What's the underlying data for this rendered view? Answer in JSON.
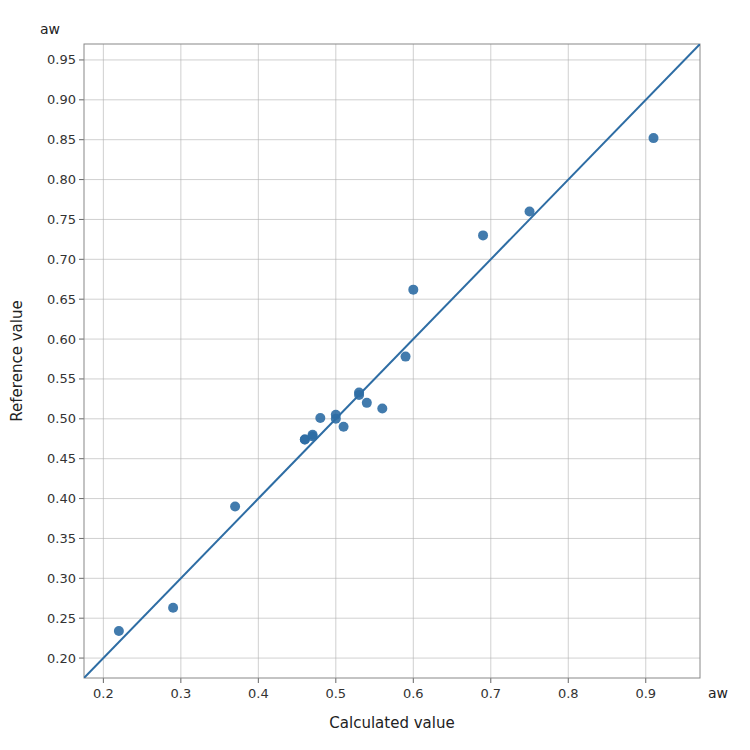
{
  "chart_data": {
    "type": "scatter",
    "xlabel": "Calculated value",
    "ylabel": "Reference value",
    "annotations": [
      "aw",
      "aw"
    ],
    "background_color": "#ffffff",
    "series": [
      {
        "type": "scatter",
        "color": "#2e6da4",
        "x": [
          0.22,
          0.29,
          0.37,
          0.46,
          0.46,
          0.47,
          0.47,
          0.48,
          0.5,
          0.5,
          0.51,
          0.53,
          0.53,
          0.54,
          0.56,
          0.59,
          0.6,
          0.69,
          0.75,
          0.91
        ],
        "values": [
          0.234,
          0.263,
          0.39,
          0.474,
          0.474,
          0.478,
          0.48,
          0.501,
          0.5,
          0.505,
          0.49,
          0.53,
          0.533,
          0.52,
          0.513,
          0.578,
          0.662,
          0.73,
          0.76,
          0.852
        ]
      },
      {
        "type": "line",
        "color": "#2e6da4",
        "x": [
          0.175,
          0.97
        ],
        "values": [
          0.175,
          0.97
        ]
      }
    ],
    "xlim": [
      0.175,
      0.97
    ],
    "ylim": [
      0.175,
      0.97
    ],
    "xticks": [
      0.2,
      0.3,
      0.4,
      0.5,
      0.6,
      0.7,
      0.8,
      0.9
    ],
    "yticks": [
      {
        "value": 0.2,
        "label": "0.20"
      },
      0.25,
      {
        "value": 0.3,
        "label": "0.30"
      },
      0.35,
      {
        "value": 0.4,
        "label": "0.40"
      },
      0.45,
      {
        "value": 0.5,
        "label": "0.50"
      },
      0.55,
      {
        "value": 0.6,
        "label": "0.60"
      },
      0.65,
      {
        "value": 0.7,
        "label": "0.70"
      },
      0.75,
      {
        "value": 0.8,
        "label": "0.80"
      },
      0.85,
      {
        "value": 0.9,
        "label": "0.90"
      },
      0.95
    ],
    "grid": true,
    "grid_color": "#b0b0b0"
  }
}
